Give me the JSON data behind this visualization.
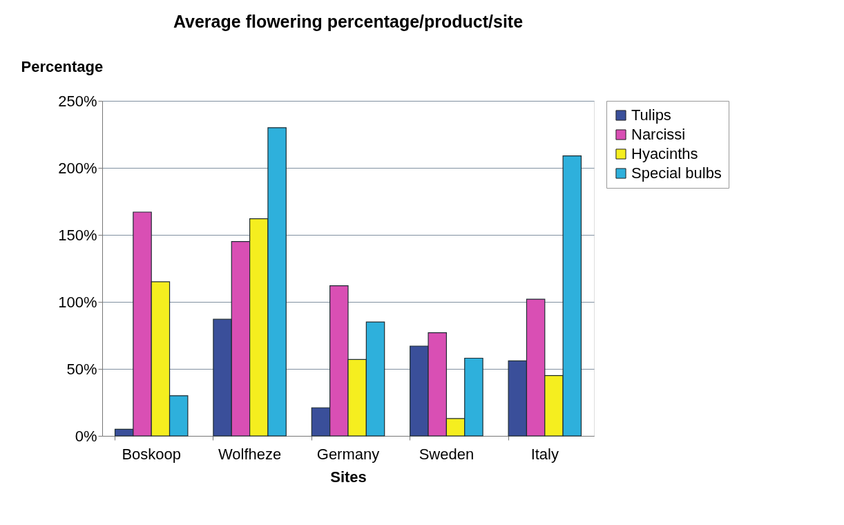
{
  "chart_data": {
    "type": "bar",
    "title": "Average flowering percentage/product/site",
    "xlabel": "Sites",
    "ylabel": "Percentage",
    "categories": [
      "Boskoop",
      "Wolfheze",
      "Germany",
      "Sweden",
      "Italy"
    ],
    "series": [
      {
        "name": "Tulips",
        "color": "#3a4f9a",
        "values": [
          5,
          87,
          21,
          67,
          56
        ]
      },
      {
        "name": "Narcissi",
        "color": "#d94fb4",
        "values": [
          167,
          145,
          112,
          77,
          102
        ]
      },
      {
        "name": "Hyacinths",
        "color": "#f5ee1f",
        "values": [
          115,
          162,
          57,
          13,
          45
        ]
      },
      {
        "name": "Special bulbs",
        "color": "#2eb0dc",
        "values": [
          30,
          230,
          85,
          58,
          209
        ]
      }
    ],
    "ylim": [
      0,
      250
    ],
    "yticks": [
      {
        "value": 0,
        "label": "0%"
      },
      {
        "value": 50,
        "label": "50%"
      },
      {
        "value": 100,
        "label": "100%"
      },
      {
        "value": 150,
        "label": "150%"
      },
      {
        "value": 200,
        "label": "200%"
      },
      {
        "value": 250,
        "label": "250%"
      }
    ],
    "grid": "y",
    "legend": "right"
  }
}
